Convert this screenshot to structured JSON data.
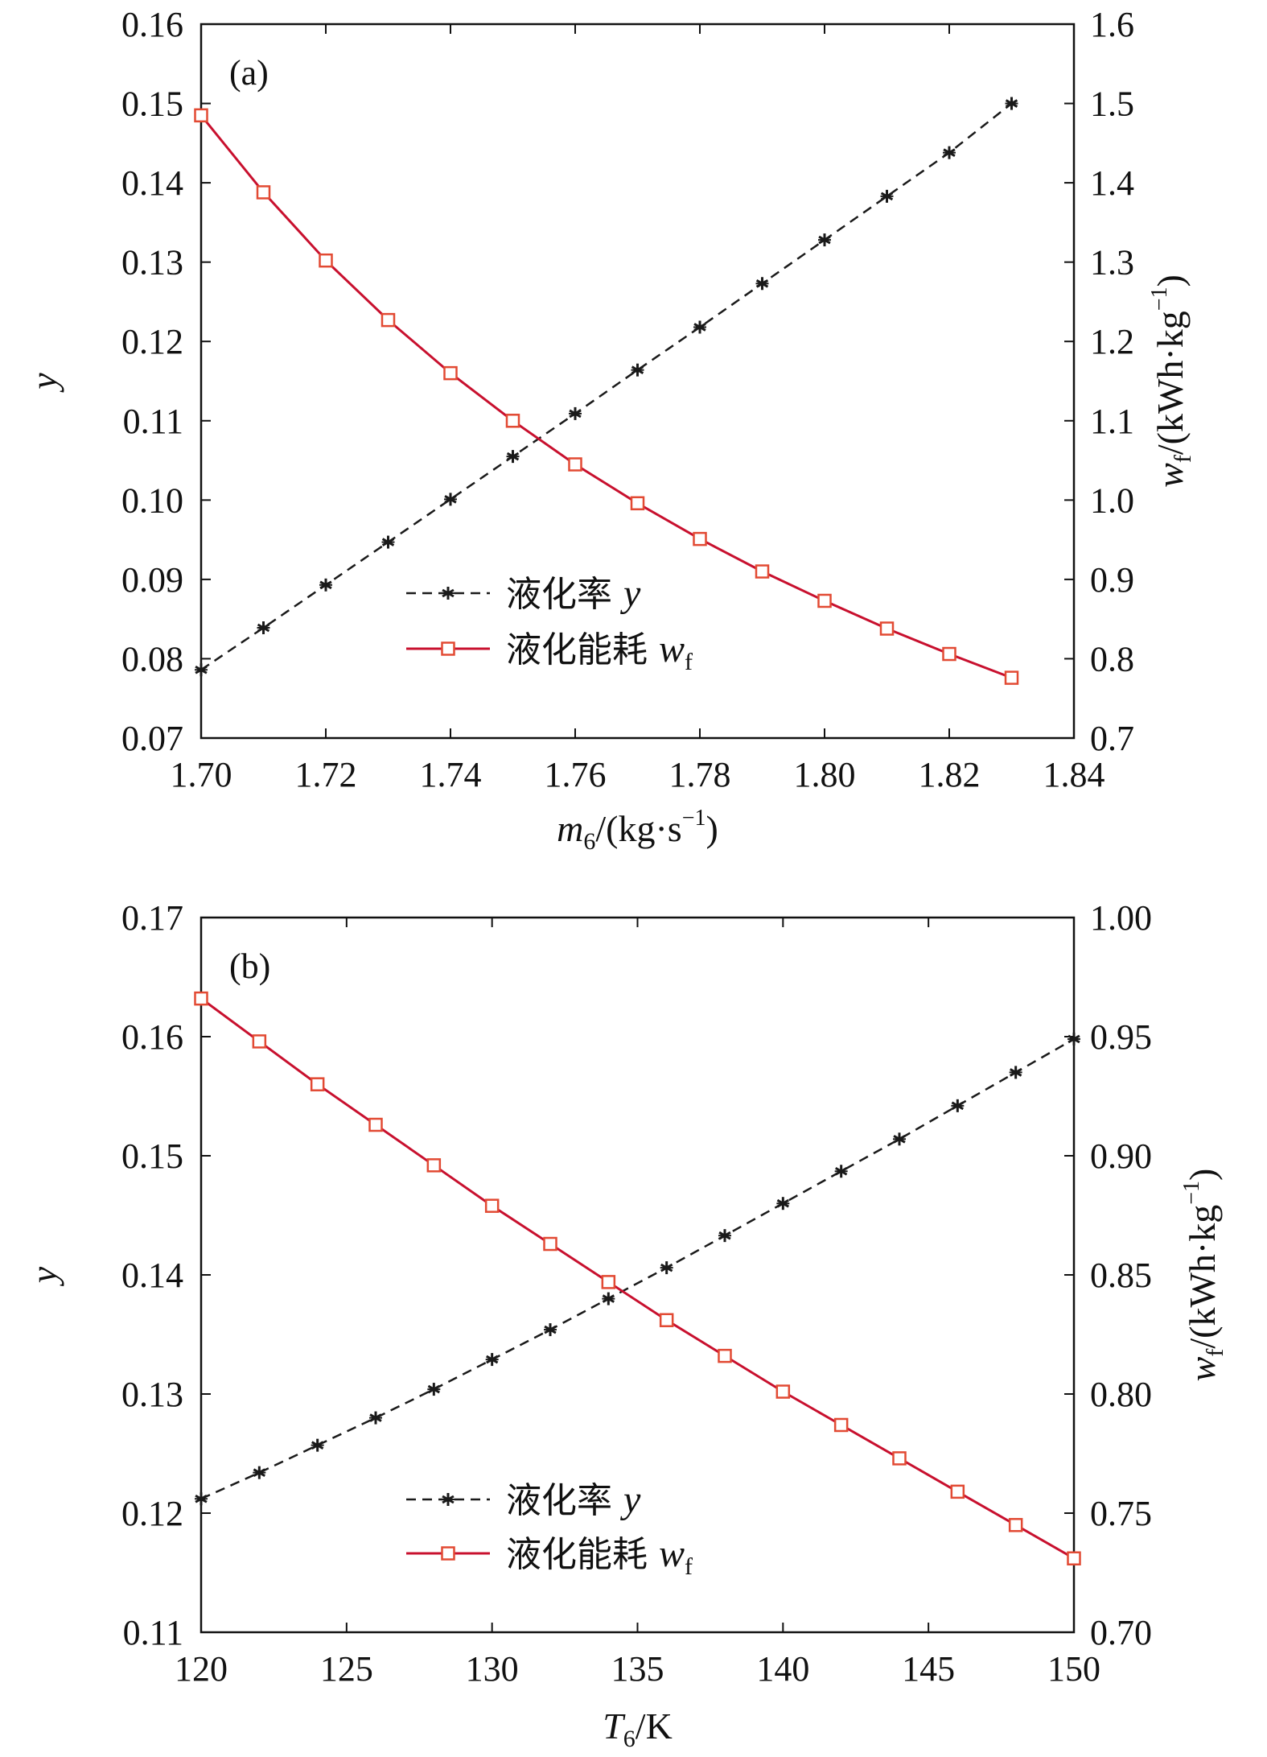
{
  "colors": {
    "liquefaction_rate": "#1a1a1a",
    "energy_consumption": "#c8102e"
  },
  "chart_data": [
    {
      "type": "line",
      "panel_label": "(a)",
      "xlabel": "m6/(kg·s−1)",
      "xlabel_parts": {
        "symbol": "m",
        "subscript": "6",
        "unit_open": "/(kg·s",
        "unit_sup": "−1",
        "unit_close": ")"
      },
      "ylabel": "y",
      "y2label": "wf/(kWh·kg−1)",
      "y2label_parts": {
        "symbol": "w",
        "subscript": "f",
        "unit_open": "/(kWh·kg",
        "unit_sup": "−1",
        "unit_close": ")"
      },
      "xlim": [
        1.7,
        1.84
      ],
      "ylim": [
        0.07,
        0.16
      ],
      "y2lim": [
        0.7,
        1.6
      ],
      "xticks": [
        "1.70",
        "1.72",
        "1.74",
        "1.76",
        "1.78",
        "1.80",
        "1.82",
        "1.84"
      ],
      "yticks": [
        "0.07",
        "0.08",
        "0.09",
        "0.10",
        "0.11",
        "0.12",
        "0.13",
        "0.14",
        "0.15",
        "0.16"
      ],
      "y2ticks": [
        "0.7",
        "0.8",
        "0.9",
        "1.0",
        "1.1",
        "1.2",
        "1.3",
        "1.4",
        "1.5",
        "1.6"
      ],
      "legend_position": "center-left",
      "x": [
        1.7,
        1.71,
        1.72,
        1.73,
        1.74,
        1.75,
        1.76,
        1.77,
        1.78,
        1.79,
        1.8,
        1.81,
        1.82,
        1.83
      ],
      "series": [
        {
          "name": "液化率 y",
          "name_text": "液化率",
          "name_symbol": "y",
          "axis": "left",
          "marker": "asterisk",
          "line": "dashed",
          "values": [
            0.0786,
            0.0839,
            0.0893,
            0.0947,
            0.1001,
            0.1055,
            0.1109,
            0.1164,
            0.1218,
            0.1273,
            0.1328,
            0.1383,
            0.1438,
            0.15
          ]
        },
        {
          "name": "液化能耗 wf",
          "name_text": "液化能耗",
          "name_symbol": "w",
          "name_subscript": "f",
          "axis": "right",
          "marker": "square",
          "line": "solid",
          "values": [
            1.485,
            1.388,
            1.302,
            1.227,
            1.16,
            1.1,
            1.045,
            0.996,
            0.951,
            0.91,
            0.873,
            0.838,
            0.806,
            0.776
          ]
        }
      ]
    },
    {
      "type": "line",
      "panel_label": "(b)",
      "xlabel": "T6/K",
      "xlabel_parts": {
        "symbol": "T",
        "subscript": "6",
        "unit_open": "/K",
        "unit_sup": "",
        "unit_close": ""
      },
      "ylabel": "y",
      "y2label": "wf/(kWh·kg−1)",
      "y2label_parts": {
        "symbol": "w",
        "subscript": "f",
        "unit_open": "/(kWh·kg",
        "unit_sup": "−1",
        "unit_close": ")"
      },
      "xlim": [
        120,
        150
      ],
      "ylim": [
        0.11,
        0.17
      ],
      "y2lim": [
        0.7,
        1.0
      ],
      "xticks": [
        "120",
        "125",
        "130",
        "135",
        "140",
        "145",
        "150"
      ],
      "yticks": [
        "0.11",
        "0.12",
        "0.13",
        "0.14",
        "0.15",
        "0.16",
        "0.17"
      ],
      "y2ticks": [
        "0.70",
        "0.75",
        "0.80",
        "0.85",
        "0.90",
        "0.95",
        "1.00"
      ],
      "legend_position": "bottom-left",
      "x": [
        120,
        122,
        124,
        126,
        128,
        130,
        132,
        134,
        136,
        138,
        140,
        142,
        144,
        146,
        148,
        150
      ],
      "series": [
        {
          "name": "液化率 y",
          "name_text": "液化率",
          "name_symbol": "y",
          "axis": "left",
          "marker": "asterisk",
          "line": "dashed",
          "values": [
            0.1212,
            0.1234,
            0.1257,
            0.128,
            0.1304,
            0.1329,
            0.1354,
            0.138,
            0.1406,
            0.1433,
            0.146,
            0.1487,
            0.1514,
            0.1542,
            0.157,
            0.1598
          ]
        },
        {
          "name": "液化能耗 wf",
          "name_text": "液化能耗",
          "name_symbol": "w",
          "name_subscript": "f",
          "axis": "right",
          "marker": "square",
          "line": "solid",
          "values": [
            0.966,
            0.948,
            0.93,
            0.913,
            0.896,
            0.879,
            0.863,
            0.847,
            0.831,
            0.816,
            0.801,
            0.787,
            0.773,
            0.759,
            0.745,
            0.731
          ]
        }
      ]
    }
  ]
}
